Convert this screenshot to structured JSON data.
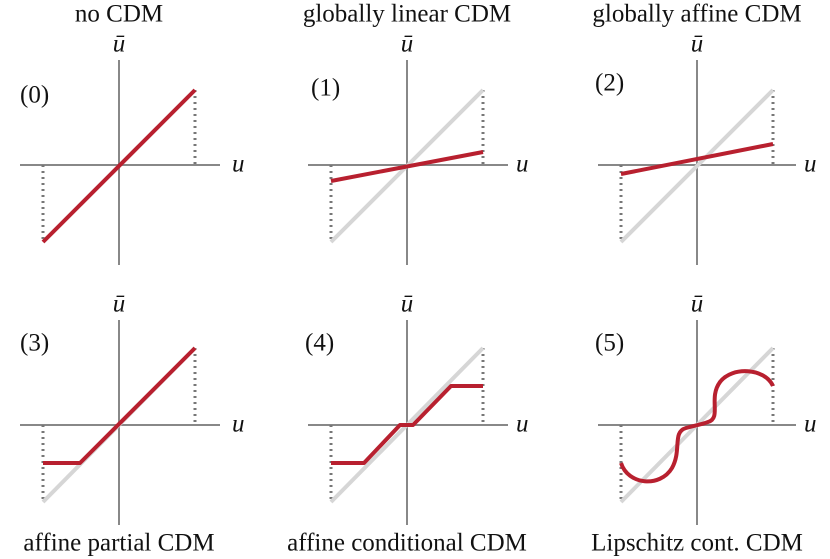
{
  "panels": [
    {
      "title": "no CDM",
      "label": "(0)",
      "x_axis": "u",
      "y_axis": "ū"
    },
    {
      "title": "globally linear CDM",
      "label": "(1)",
      "x_axis": "u",
      "y_axis": "ū"
    },
    {
      "title": "globally affine CDM",
      "label": "(2)",
      "x_axis": "u",
      "y_axis": "ū"
    },
    {
      "title": "affine partial CDM",
      "label": "(3)",
      "x_axis": "u",
      "y_axis": "ū"
    },
    {
      "title": "affine conditional CDM",
      "label": "(4)",
      "x_axis": "u",
      "y_axis": "ū"
    },
    {
      "title": "Lipschitz cont. CDM",
      "label": "(5)",
      "x_axis": "u",
      "y_axis": "ū"
    }
  ]
}
